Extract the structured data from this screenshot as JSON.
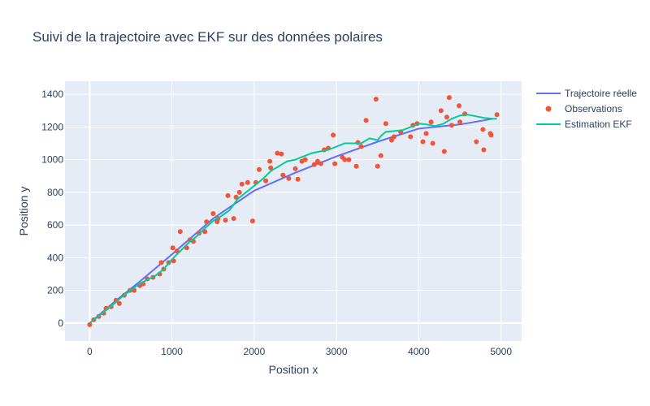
{
  "chart_data": {
    "type": "scatter",
    "title": "Suivi de la trajectoire avec EKF sur des données polaires",
    "xlabel": "Position x",
    "ylabel": "Position y",
    "xlim": [
      -300,
      5250
    ],
    "ylim": [
      -110,
      1480
    ],
    "xticks": [
      0,
      1000,
      2000,
      3000,
      4000,
      5000
    ],
    "yticks": [
      0,
      200,
      400,
      600,
      800,
      1000,
      1200,
      1400
    ],
    "grid": true,
    "legend_position": "top-right",
    "series": [
      {
        "name": "Trajectoire réelle",
        "mode": "lines",
        "color": "#636efa",
        "x": [
          0,
          300,
          600,
          1000,
          1500,
          2000,
          2500,
          3000,
          3500,
          4000,
          4500,
          4900
        ],
        "y": [
          0,
          130,
          250,
          420,
          640,
          810,
          920,
          1020,
          1110,
          1190,
          1215,
          1250
        ]
      },
      {
        "name": "Observations",
        "mode": "markers",
        "color": "#ef553b",
        "x": [
          0,
          50,
          110,
          170,
          200,
          260,
          320,
          360,
          420,
          490,
          540,
          610,
          650,
          700,
          770,
          850,
          870,
          900,
          960,
          1010,
          1020,
          1060,
          1100,
          1180,
          1220,
          1260,
          1330,
          1400,
          1420,
          1500,
          1550,
          1560,
          1650,
          1680,
          1750,
          1780,
          1820,
          1850,
          1920,
          1980,
          2020,
          2060,
          2140,
          2190,
          2200,
          2280,
          2330,
          2350,
          2420,
          2500,
          2530,
          2580,
          2620,
          2730,
          2770,
          2810,
          2850,
          2900,
          2960,
          2980,
          3070,
          3100,
          3150,
          3240,
          3260,
          3300,
          3360,
          3480,
          3500,
          3540,
          3600,
          3670,
          3700,
          3780,
          3900,
          3930,
          3980,
          4050,
          4090,
          4150,
          4170,
          4270,
          4310,
          4340,
          4370,
          4400,
          4490,
          4500,
          4560,
          4700,
          4780,
          4790,
          4870,
          4880,
          4950
        ],
        "y": [
          -10,
          20,
          40,
          60,
          90,
          100,
          140,
          120,
          170,
          200,
          200,
          230,
          240,
          270,
          280,
          300,
          370,
          330,
          370,
          460,
          380,
          440,
          560,
          460,
          510,
          500,
          550,
          560,
          620,
          670,
          620,
          640,
          630,
          780,
          640,
          770,
          800,
          850,
          860,
          625,
          860,
          940,
          870,
          990,
          950,
          1040,
          1035,
          905,
          885,
          945,
          880,
          990,
          1000,
          970,
          990,
          975,
          1060,
          1070,
          1150,
          975,
          1015,
          1000,
          1000,
          960,
          1105,
          1080,
          1240,
          1370,
          960,
          1025,
          1220,
          1120,
          1140,
          1170,
          1140,
          1210,
          1220,
          1110,
          1160,
          1230,
          1100,
          1300,
          1050,
          1260,
          1380,
          1210,
          1330,
          1230,
          1280,
          1110,
          1185,
          1060,
          1160,
          1150,
          1275
        ]
      },
      {
        "name": "Estimation EKF",
        "mode": "lines",
        "color": "#00cc96",
        "x": [
          0,
          100,
          200,
          300,
          400,
          500,
          600,
          700,
          800,
          900,
          1000,
          1100,
          1200,
          1300,
          1400,
          1500,
          1600,
          1700,
          1800,
          1900,
          2000,
          2100,
          2200,
          2300,
          2400,
          2500,
          2600,
          2700,
          2800,
          2900,
          3000,
          3100,
          3200,
          3300,
          3400,
          3500,
          3550,
          3600,
          3700,
          3800,
          3900,
          4000,
          4100,
          4200,
          4300,
          4400,
          4500,
          4600,
          4700,
          4800,
          4900,
          4950
        ],
        "y": [
          0,
          40,
          80,
          120,
          165,
          200,
          240,
          265,
          290,
          330,
          390,
          440,
          490,
          530,
          580,
          625,
          655,
          690,
          760,
          800,
          840,
          880,
          930,
          960,
          990,
          1000,
          1020,
          1040,
          1050,
          1060,
          1080,
          1100,
          1100,
          1100,
          1130,
          1120,
          1150,
          1170,
          1175,
          1180,
          1200,
          1220,
          1215,
          1205,
          1220,
          1250,
          1270,
          1275,
          1265,
          1255,
          1250,
          1250
        ]
      }
    ]
  }
}
